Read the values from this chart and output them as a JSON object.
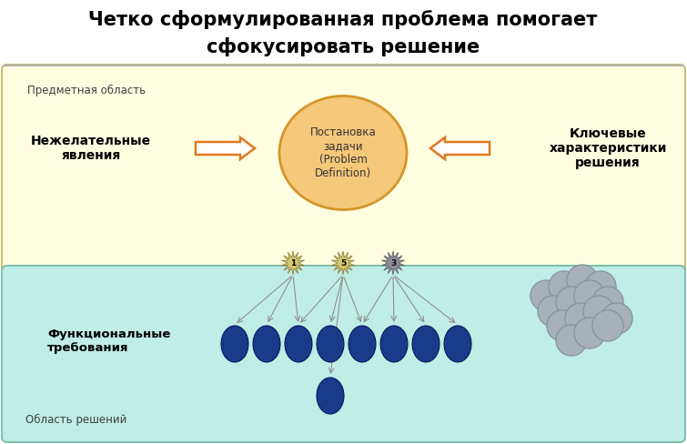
{
  "title_line1": "Четко сформулированная проблема помогает",
  "title_line2": "сфокусировать решение",
  "title_fontsize": 15,
  "bg_color": "#ffffff",
  "top_box_color": "#fffee0",
  "top_box_edge": "#c8c070",
  "bottom_box_color": "#c0ede5",
  "bottom_box_edge": "#80c0b0",
  "subject_area_text": "Предметная область",
  "undesirable_text": "Нежелательные\nявления",
  "center_text": "Постановка\nзадачи\n(Problem\nDefinition)",
  "key_chars_text": "Ключевые\nхарактеристики\nрешения",
  "functional_text": "Функциональные\nтребования",
  "solutions_area_text": "Область решений",
  "ellipse_center_color": "#f5c87a",
  "ellipse_center_edge": "#d4952a",
  "blue_ball_color": "#1a3a8a",
  "gray_ball_color": "#a8b0b8",
  "star_color1": "#d4c870",
  "star_color2": "#909098",
  "arrow_color": "#e07820",
  "line_color": "#909090",
  "separator_color": "#b0b0b0"
}
